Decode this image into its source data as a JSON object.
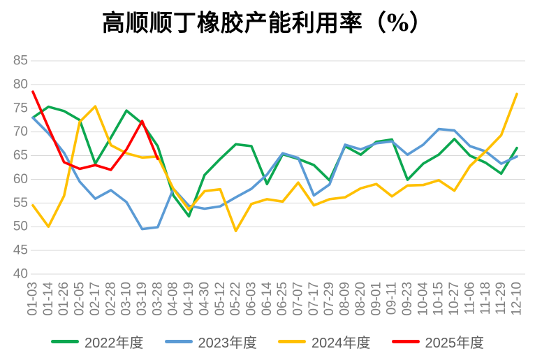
{
  "title": "高顺顺丁橡胶产能利用率（%）",
  "colors": {
    "grid": "#d9d9d9",
    "axis_text": "#808080",
    "legend_text": "#595959",
    "title_text": "#000000",
    "series_2022": "#0ca750",
    "series_2023": "#5b9bd5",
    "series_2024": "#ffc000",
    "series_2025": "#ff0000"
  },
  "chart_data": {
    "type": "line",
    "title": "高顺顺丁橡胶产能利用率（%）",
    "xlabel": "",
    "ylabel": "",
    "ylim": [
      40,
      85
    ],
    "ytick_step": 5,
    "grid": "horizontal",
    "legend_position": "bottom",
    "categories": [
      "01-03",
      "01-14",
      "01-26",
      "02-05",
      "02-17",
      "02-28",
      "03-10",
      "03-19",
      "03-28",
      "04-08",
      "04-19",
      "04-30",
      "05-12",
      "05-22",
      "06-03",
      "06-14",
      "06-25",
      "07-07",
      "07-17",
      "07-29",
      "08-09",
      "08-20",
      "09-01",
      "09-11",
      "09-23",
      "10-04",
      "10-15",
      "10-27",
      "11-06",
      "11-18",
      "11-29",
      "12-10"
    ],
    "series": [
      {
        "name": "2022年度",
        "color": "#0ca750",
        "values": [
          73,
          75.3,
          74.4,
          72.5,
          63.3,
          68.8,
          74.5,
          71.8,
          67,
          56.6,
          52.2,
          60.9,
          64.3,
          67.4,
          67,
          59,
          65.3,
          64.3,
          63,
          59.8,
          67,
          65.2,
          67.9,
          68.4,
          59.9,
          63.3,
          65.2,
          68.5,
          65,
          63.5,
          61.2,
          66.6
        ]
      },
      {
        "name": "2023年度",
        "color": "#5b9bd5",
        "values": [
          73,
          69.7,
          65.6,
          59.5,
          55.9,
          57.7,
          55.2,
          49.5,
          49.9,
          58,
          54.4,
          53.8,
          54.3,
          56.2,
          58,
          61,
          65.5,
          64.5,
          56.6,
          58.9,
          67.3,
          66.3,
          67.6,
          68,
          65.2,
          67.3,
          70.6,
          70.3,
          67,
          65.9,
          63.3,
          64.8
        ]
      },
      {
        "name": "2024年度",
        "color": "#ffc000",
        "values": [
          54.5,
          50,
          56.5,
          72.1,
          75.4,
          67.2,
          65.5,
          64.6,
          64.8,
          58,
          53.6,
          57.5,
          57.9,
          49.1,
          54.8,
          55.8,
          55.3,
          59.3,
          54.5,
          55.8,
          56.2,
          58.1,
          59,
          56.4,
          58.7,
          58.8,
          59.8,
          57.6,
          62.8,
          65.9,
          69.3,
          78
        ]
      },
      {
        "name": "2025年度",
        "color": "#ff0000",
        "values": [
          78.5,
          70.9,
          63.6,
          62.2,
          63,
          62,
          66.3,
          72.3,
          64.3
        ]
      }
    ]
  }
}
